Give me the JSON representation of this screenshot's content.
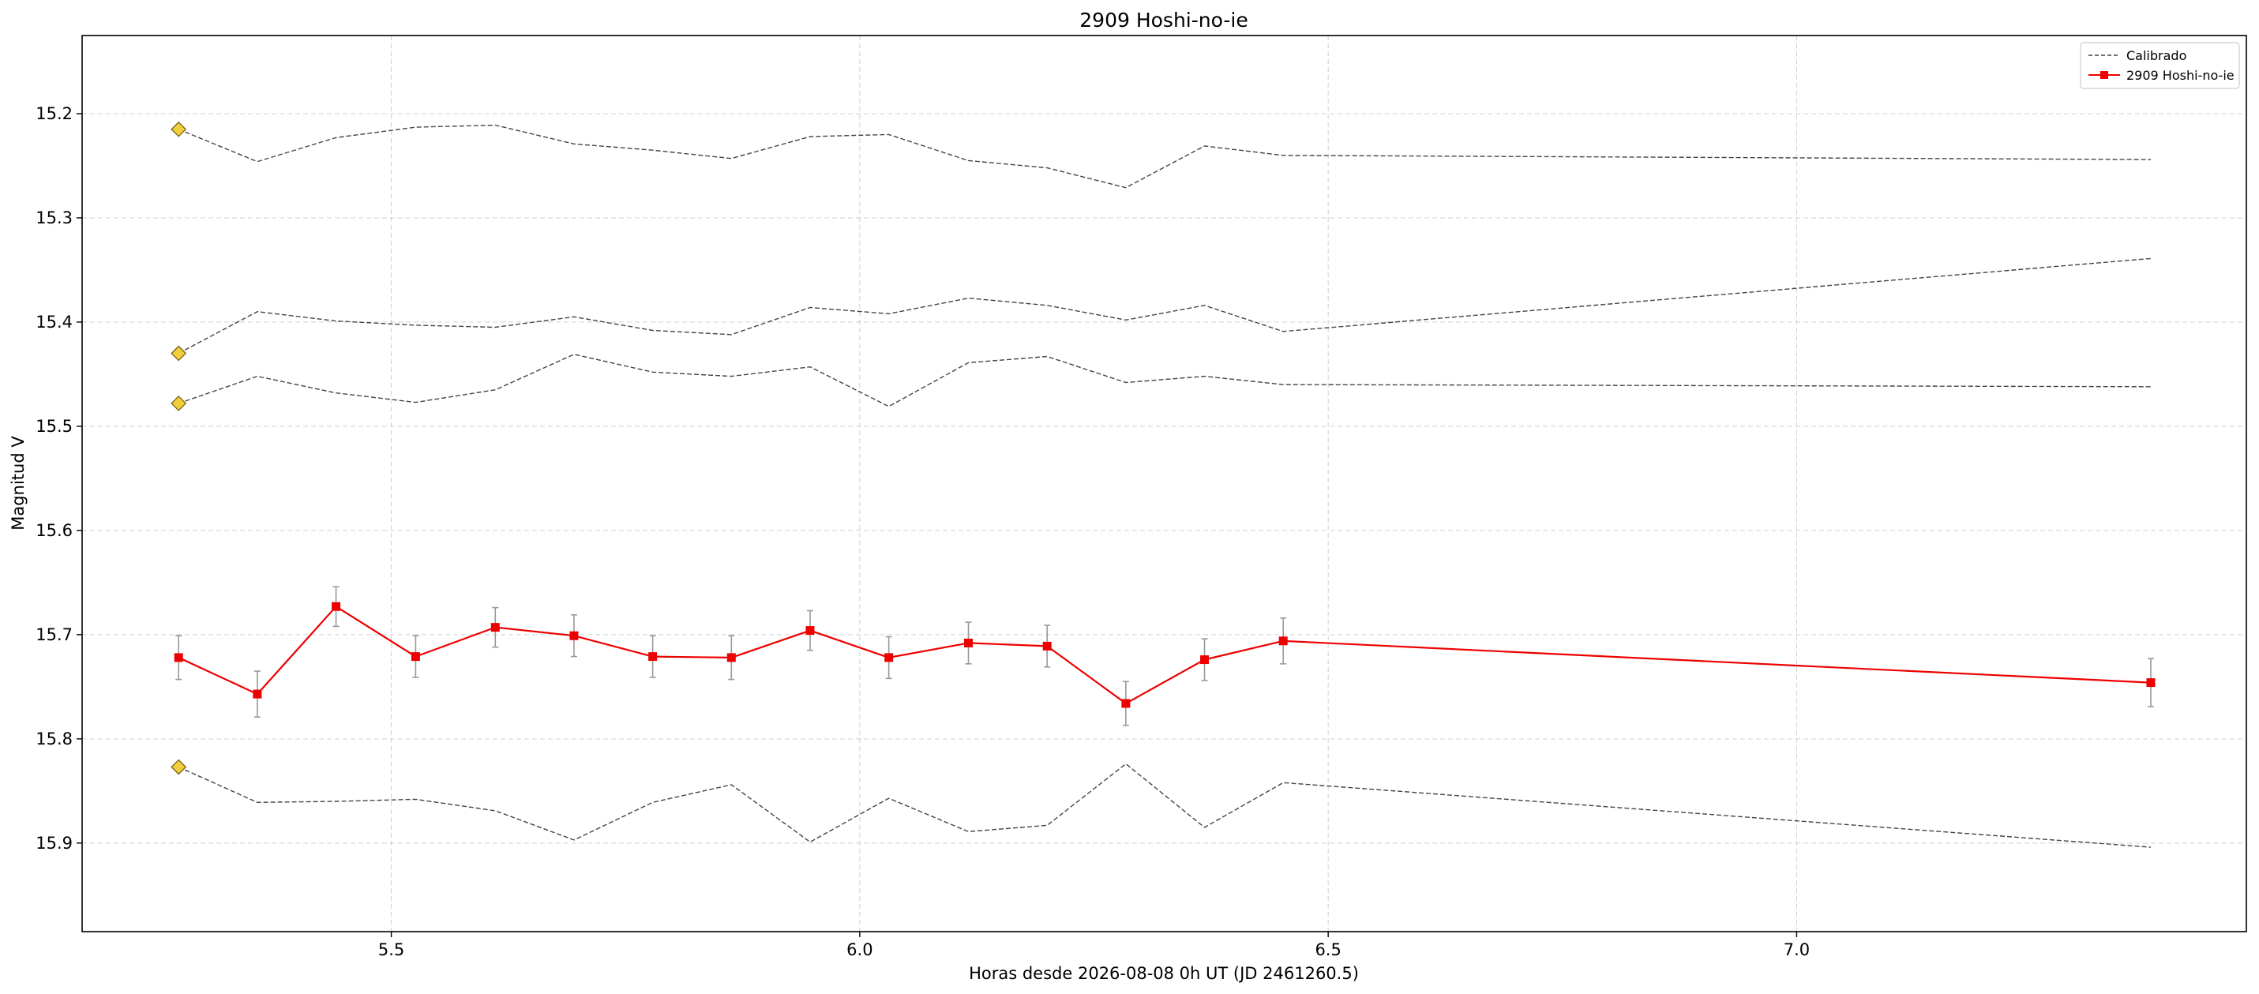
{
  "chart_data": {
    "type": "line",
    "title": "2909 Hoshi-no-ie",
    "xlabel": "Horas desde 2026-08-08 0h UT (JD 2461260.5)",
    "ylabel": "Magnitud V",
    "xlim": [
      5.17,
      7.48
    ],
    "ylim": [
      15.985,
      15.125
    ],
    "y_inverted": true,
    "x_ticks": [
      5.5,
      6.0,
      6.5,
      7.0
    ],
    "x_tick_labels": [
      "5.5",
      "6.0",
      "6.5",
      "7.0"
    ],
    "y_ticks": [
      15.2,
      15.3,
      15.4,
      15.5,
      15.6,
      15.7,
      15.8,
      15.9
    ],
    "y_tick_labels": [
      "15.2",
      "15.3",
      "15.4",
      "15.5",
      "15.6",
      "15.7",
      "15.8",
      "15.9"
    ],
    "grid": true,
    "legend_position": "top-right",
    "legend": [
      {
        "label": "Calibrado",
        "style": "dashed",
        "color": "#444444"
      },
      {
        "label": "2909 Hoshi-no-ie",
        "style": "solid-square",
        "color": "#ee0000"
      }
    ],
    "series": [
      {
        "name": "Calibrado",
        "style": "dashed",
        "color": "#444444",
        "marker_first": "diamond",
        "x": [
          5.273,
          5.357,
          5.441,
          5.526,
          5.611,
          5.695,
          5.779,
          5.863,
          5.947,
          6.031,
          6.116,
          6.2,
          6.284,
          6.368,
          6.452,
          7.378
        ],
        "y": [
          15.215,
          15.246,
          15.223,
          15.213,
          15.211,
          15.229,
          15.235,
          15.243,
          15.222,
          15.22,
          15.245,
          15.252,
          15.271,
          15.231,
          15.24,
          15.244
        ]
      },
      {
        "name": "Calibrado",
        "style": "dashed",
        "color": "#444444",
        "marker_first": "diamond",
        "x": [
          5.273,
          5.357,
          5.441,
          5.526,
          5.611,
          5.695,
          5.779,
          5.863,
          5.947,
          6.031,
          6.116,
          6.2,
          6.284,
          6.368,
          6.452,
          7.378
        ],
        "y": [
          15.43,
          15.39,
          15.399,
          15.403,
          15.405,
          15.395,
          15.408,
          15.412,
          15.386,
          15.392,
          15.377,
          15.384,
          15.398,
          15.384,
          15.409,
          15.339
        ]
      },
      {
        "name": "Calibrado",
        "style": "dashed",
        "color": "#444444",
        "marker_first": "diamond",
        "x": [
          5.273,
          5.357,
          5.441,
          5.526,
          5.611,
          5.695,
          5.779,
          5.863,
          5.947,
          6.031,
          6.116,
          6.2,
          6.284,
          6.368,
          6.452,
          7.378
        ],
        "y": [
          15.478,
          15.452,
          15.468,
          15.477,
          15.465,
          15.431,
          15.448,
          15.452,
          15.443,
          15.481,
          15.439,
          15.433,
          15.458,
          15.452,
          15.46,
          15.462
        ]
      },
      {
        "name": "Calibrado",
        "style": "dashed",
        "color": "#444444",
        "marker_first": "diamond",
        "x": [
          5.273,
          5.357,
          5.441,
          5.526,
          5.611,
          5.695,
          5.779,
          5.863,
          5.947,
          6.031,
          6.116,
          6.2,
          6.284,
          6.368,
          6.452,
          7.378
        ],
        "y": [
          15.827,
          15.861,
          15.86,
          15.858,
          15.869,
          15.897,
          15.861,
          15.844,
          15.899,
          15.857,
          15.889,
          15.883,
          15.824,
          15.885,
          15.842,
          15.904
        ]
      },
      {
        "name": "2909 Hoshi-no-ie",
        "style": "solid",
        "color": "#ee0000",
        "marker": "square",
        "x": [
          5.273,
          5.357,
          5.441,
          5.526,
          5.611,
          5.695,
          5.779,
          5.863,
          5.947,
          6.031,
          6.116,
          6.2,
          6.284,
          6.368,
          6.452,
          7.378
        ],
        "y": [
          15.722,
          15.757,
          15.673,
          15.721,
          15.693,
          15.701,
          15.721,
          15.722,
          15.696,
          15.722,
          15.708,
          15.711,
          15.766,
          15.724,
          15.706,
          15.746
        ],
        "yerr": [
          0.021,
          0.022,
          0.019,
          0.02,
          0.019,
          0.02,
          0.02,
          0.021,
          0.019,
          0.02,
          0.02,
          0.02,
          0.021,
          0.02,
          0.022,
          0.023
        ]
      }
    ]
  }
}
